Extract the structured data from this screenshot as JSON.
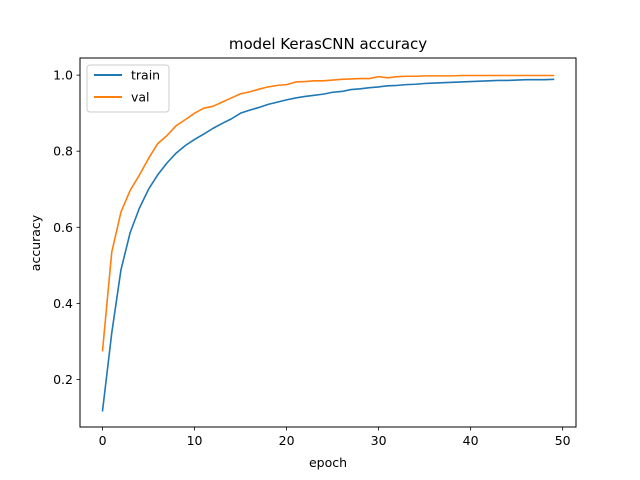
{
  "chart_data": {
    "type": "line",
    "title": "model KerasCNN accuracy",
    "xlabel": "epoch",
    "ylabel": "accuracy",
    "xlim": [
      -2.45,
      51.45
    ],
    "ylim": [
      0.075,
      1.045
    ],
    "xticks": [
      0,
      10,
      20,
      30,
      40,
      50
    ],
    "yticks": [
      0.2,
      0.4,
      0.6,
      0.8,
      1.0
    ],
    "ytick_labels": [
      "0.2",
      "0.4",
      "0.6",
      "0.8",
      "1.0"
    ],
    "grid": false,
    "legend_position": "upper-left",
    "x": [
      0,
      1,
      2,
      3,
      4,
      5,
      6,
      7,
      8,
      9,
      10,
      11,
      12,
      13,
      14,
      15,
      16,
      17,
      18,
      19,
      20,
      21,
      22,
      23,
      24,
      25,
      26,
      27,
      28,
      29,
      30,
      31,
      32,
      33,
      34,
      35,
      36,
      37,
      38,
      39,
      40,
      41,
      42,
      43,
      44,
      45,
      46,
      47,
      48,
      49
    ],
    "series": [
      {
        "name": "train",
        "color": "#1f77b4",
        "values": [
          0.118,
          0.322,
          0.488,
          0.586,
          0.65,
          0.7,
          0.738,
          0.769,
          0.795,
          0.815,
          0.831,
          0.845,
          0.86,
          0.873,
          0.885,
          0.9,
          0.908,
          0.915,
          0.923,
          0.929,
          0.935,
          0.94,
          0.944,
          0.947,
          0.95,
          0.955,
          0.957,
          0.962,
          0.964,
          0.967,
          0.969,
          0.972,
          0.973,
          0.975,
          0.976,
          0.978,
          0.979,
          0.98,
          0.981,
          0.982,
          0.983,
          0.984,
          0.985,
          0.986,
          0.986,
          0.987,
          0.988,
          0.988,
          0.988,
          0.989
        ]
      },
      {
        "name": "val",
        "color": "#ff7f0e",
        "values": [
          0.276,
          0.535,
          0.64,
          0.697,
          0.737,
          0.781,
          0.82,
          0.841,
          0.867,
          0.883,
          0.9,
          0.913,
          0.918,
          0.929,
          0.94,
          0.951,
          0.956,
          0.963,
          0.969,
          0.973,
          0.975,
          0.982,
          0.983,
          0.985,
          0.985,
          0.987,
          0.989,
          0.99,
          0.991,
          0.991,
          0.996,
          0.993,
          0.996,
          0.997,
          0.997,
          0.998,
          0.998,
          0.998,
          0.998,
          0.999,
          0.999,
          0.999,
          0.999,
          0.999,
          0.999,
          0.999,
          0.999,
          0.999,
          0.999,
          0.999
        ]
      }
    ]
  }
}
